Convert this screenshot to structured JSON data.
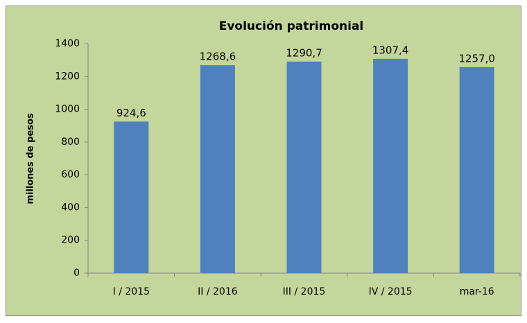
{
  "chart_data": {
    "type": "bar",
    "title": "Evolución patrimonial",
    "y_label": "millones de pesos",
    "categories": [
      "I / 2015",
      "II / 2016",
      "III / 2015",
      "IV / 2015",
      "mar-16"
    ],
    "values": [
      924.6,
      1268.6,
      1290.7,
      1307.4,
      1257.0
    ],
    "value_labels": [
      "924,6",
      "1268,6",
      "1290,7",
      "1307,4",
      "1257,0"
    ],
    "color": "#4f81bd",
    "background": "#c3d69b",
    "ylim": [
      0,
      1400
    ],
    "yticks": [
      0,
      200,
      400,
      600,
      800,
      1000,
      1200,
      1400
    ],
    "grid": false
  }
}
